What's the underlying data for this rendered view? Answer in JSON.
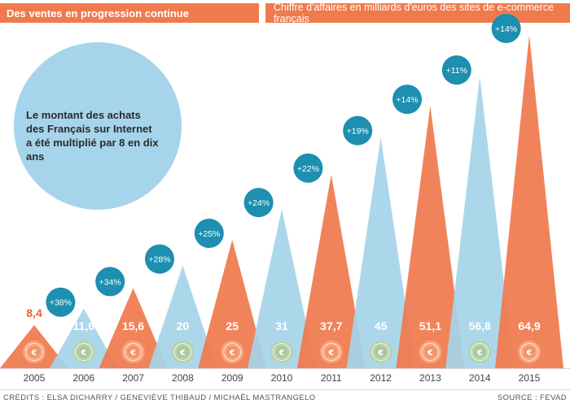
{
  "header": {
    "left_title": "Des ventes en progression continue",
    "right_title": "Chiffre d'affaires en milliards d'euros des sites de e-commerce français"
  },
  "bubble": {
    "lines": [
      "Le montant des achats",
      "des Français sur Internet",
      "a été multiplié par 8 en dix ans"
    ]
  },
  "colors": {
    "orange": "#f07a4d",
    "blue": "#a6d4ea",
    "badge": "#1d8fb0",
    "bubble": "#a6d4ea",
    "first_label": "#e9643a"
  },
  "chart_data": {
    "type": "bar",
    "title": "Chiffre d'affaires en milliards d'euros des sites de e-commerce français",
    "categories": [
      "2005",
      "2006",
      "2007",
      "2008",
      "2009",
      "2010",
      "2011",
      "2012",
      "2013",
      "2014",
      "2015"
    ],
    "values": [
      8.4,
      11.6,
      15.6,
      20,
      25,
      31,
      37.7,
      45,
      51.1,
      56.8,
      64.9
    ],
    "value_labels": [
      "8,4",
      "11,6",
      "15,6",
      "20",
      "25",
      "31",
      "37,7",
      "45",
      "51,1",
      "56,8",
      "64,9"
    ],
    "growth_labels": [
      "+38%",
      "+34%",
      "+28%",
      "+25%",
      "+24%",
      "+22%",
      "+19%",
      "+14%",
      "+11%",
      "+14%"
    ],
    "bar_colors": [
      "orange",
      "blue",
      "orange",
      "blue",
      "orange",
      "blue",
      "orange",
      "blue",
      "orange",
      "blue",
      "orange"
    ],
    "ylim": [
      0,
      66
    ],
    "xlabel": "",
    "ylabel": "Milliards d'euros"
  },
  "footer": {
    "credits": "CRÉDITS : ELSA DICHARRY / GENEVIÈVE THIBAUD / MICHAËL MASTRANGELO",
    "source": "SOURCE : FEVAD"
  }
}
